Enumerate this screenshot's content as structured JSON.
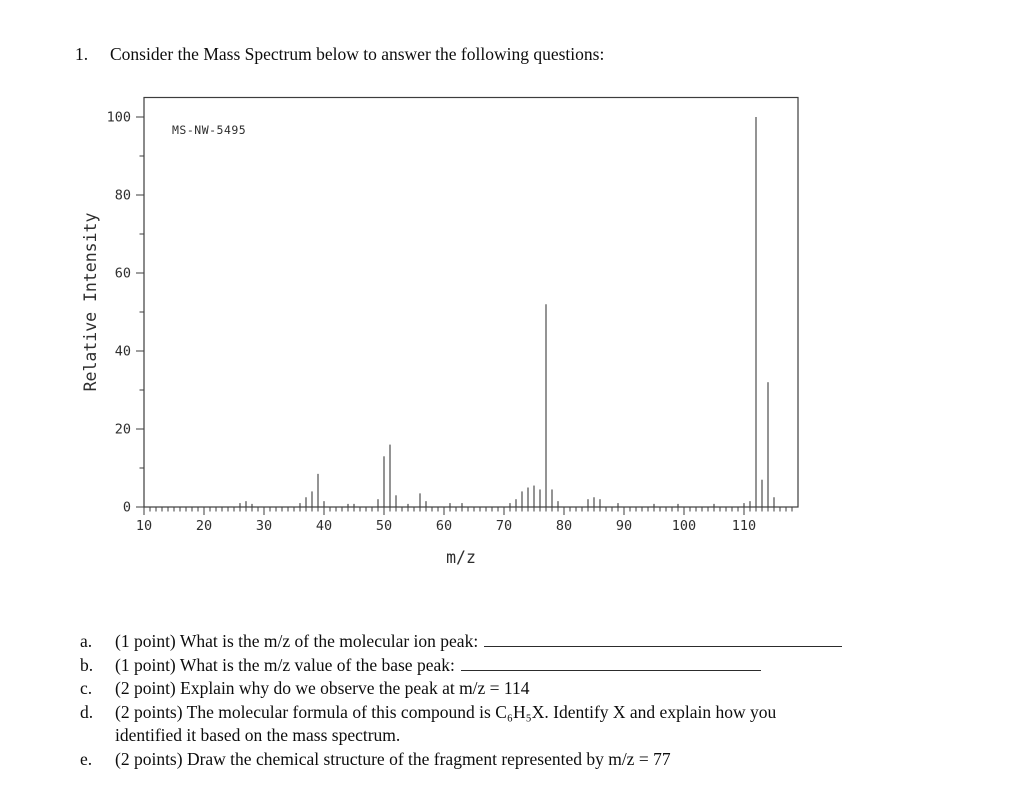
{
  "heading": {
    "number": "1.",
    "text": "Consider the Mass Spectrum below to answer the following questions:"
  },
  "chart_data": {
    "type": "bar",
    "subtype": "mass-spectrum",
    "title": "MS-NW-5495",
    "xlabel": "m/z",
    "ylabel": "Relative Intensity",
    "xlim": [
      10,
      119
    ],
    "ylim": [
      0,
      105
    ],
    "x_tick_labels": [
      10,
      20,
      30,
      40,
      50,
      60,
      70,
      80,
      90,
      100,
      110
    ],
    "x_minor_tick_step": 1,
    "y_tick_labels": [
      0,
      20,
      40,
      60,
      80,
      100
    ],
    "y_minor_tick_step": 10,
    "grid": false,
    "legend": false,
    "axis_color": "#3d3d3d",
    "bar_color": "#3d3d3d",
    "peaks": [
      [
        26,
        1
      ],
      [
        27,
        1.5
      ],
      [
        28,
        0.8
      ],
      [
        36,
        1
      ],
      [
        37,
        2.5
      ],
      [
        38,
        4
      ],
      [
        39,
        8.5
      ],
      [
        40,
        1.5
      ],
      [
        44,
        0.8
      ],
      [
        45,
        0.8
      ],
      [
        49,
        2
      ],
      [
        50,
        13
      ],
      [
        51,
        16
      ],
      [
        52,
        3
      ],
      [
        54,
        0.8
      ],
      [
        56,
        3.5
      ],
      [
        57,
        1.5
      ],
      [
        61,
        1
      ],
      [
        63,
        1
      ],
      [
        71,
        1
      ],
      [
        72,
        2
      ],
      [
        73,
        4
      ],
      [
        74,
        5
      ],
      [
        75,
        5.5
      ],
      [
        76,
        4.5
      ],
      [
        77,
        52
      ],
      [
        78,
        4.5
      ],
      [
        79,
        1.5
      ],
      [
        84,
        2
      ],
      [
        85,
        2.5
      ],
      [
        86,
        2
      ],
      [
        89,
        1
      ],
      [
        95,
        0.8
      ],
      [
        99,
        0.8
      ],
      [
        105,
        0.8
      ],
      [
        110,
        1
      ],
      [
        111,
        1.5
      ],
      [
        112,
        100
      ],
      [
        113,
        7
      ],
      [
        114,
        32
      ],
      [
        115,
        2.5
      ]
    ]
  },
  "questions": {
    "items": [
      {
        "label": "a.",
        "text": "(1 point) What is the m/z of the molecular ion peak:"
      },
      {
        "label": "b.",
        "text": "(1 point) What is the m/z value of the base peak:"
      },
      {
        "label": "c.",
        "text": "(2 point) Explain why do we observe the peak at m/z = 114"
      },
      {
        "label": "d.",
        "text": "(2 points) The molecular formula of this compound is C₆H₅X. Identify X and explain how you"
      },
      {
        "label": "",
        "text": "identified it based on the mass spectrum."
      },
      {
        "label": "e.",
        "text": "(2 points) Draw the chemical structure of the fragment represented by m/z = 77"
      }
    ]
  }
}
